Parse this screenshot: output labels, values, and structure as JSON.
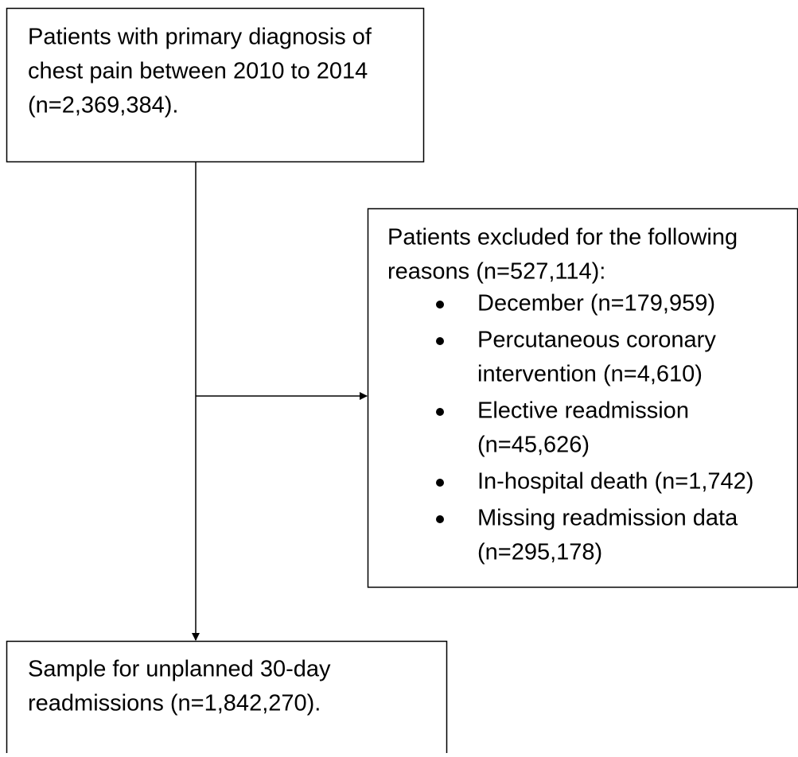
{
  "nodes": [
    {
      "lines": [
        "Patients with primary diagnosis of",
        "chest pain between 2010 to 2014",
        "(n=2,369,384)."
      ]
    },
    {
      "lines": [
        "Patients excluded for the following",
        "reasons (n=527,114):"
      ],
      "items": [
        {
          "lines": [
            "December (n=179,959)"
          ]
        },
        {
          "lines": [
            "Percutaneous coronary",
            "intervention (n=4,610)"
          ]
        },
        {
          "lines": [
            "Elective readmission",
            "(n=45,626)"
          ]
        },
        {
          "lines": [
            "In-hospital death (n=1,742)"
          ]
        },
        {
          "lines": [
            "Missing readmission data",
            "(n=295,178)"
          ]
        }
      ]
    },
    {
      "lines": [
        "Sample for unplanned 30-day",
        "readmissions (n=1,842,270)."
      ]
    }
  ]
}
